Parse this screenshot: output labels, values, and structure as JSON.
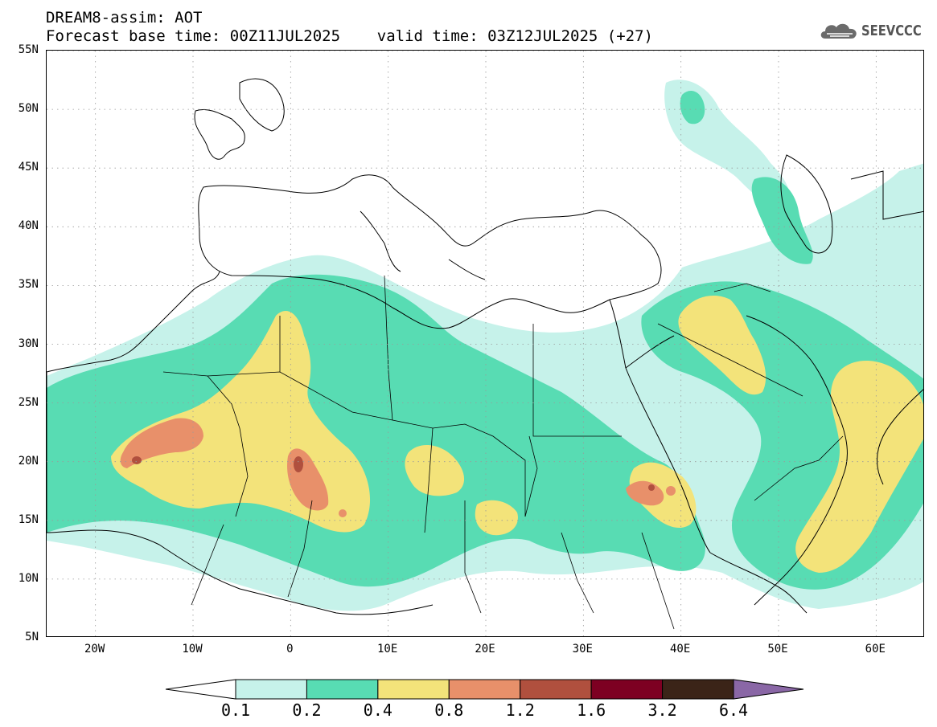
{
  "header": {
    "title_line1": "DREAM8-assim: AOT",
    "title_line2": "Forecast base time: 00Z11JUL2025    valid time: 03Z12JUL2025 (+27)",
    "logo_text": "SEEVCCC"
  },
  "map": {
    "lon_range": [
      -25,
      65
    ],
    "lat_range": [
      5,
      55
    ],
    "lat_ticks": [
      "55N",
      "50N",
      "45N",
      "40N",
      "35N",
      "30N",
      "25N",
      "20N",
      "15N",
      "10N",
      "5N"
    ],
    "lat_tick_values": [
      55,
      50,
      45,
      40,
      35,
      30,
      25,
      20,
      15,
      10,
      5
    ],
    "lon_ticks": [
      "20W",
      "10W",
      "0",
      "10E",
      "20E",
      "30E",
      "40E",
      "50E",
      "60E"
    ],
    "lon_tick_values": [
      -20,
      -10,
      0,
      10,
      20,
      30,
      40,
      50,
      60
    ],
    "gridlines": "dotted"
  },
  "colorbar": {
    "labels": [
      "0.1",
      "0.2",
      "0.4",
      "0.8",
      "1.2",
      "1.6",
      "3.2",
      "6.4"
    ],
    "colors": [
      "#c6f2ea",
      "#58dcb3",
      "#f3e37a",
      "#e8906a",
      "#b0503e",
      "#7d0022",
      "#3b2418",
      "#8a67a6"
    ],
    "under_color": "#ffffff"
  },
  "colors": {
    "aot_0_1": "#c6f2ea",
    "aot_0_2": "#58dcb3",
    "aot_0_4": "#f3e37a",
    "aot_0_8": "#e8906a",
    "aot_1_2": "#b0503e"
  }
}
